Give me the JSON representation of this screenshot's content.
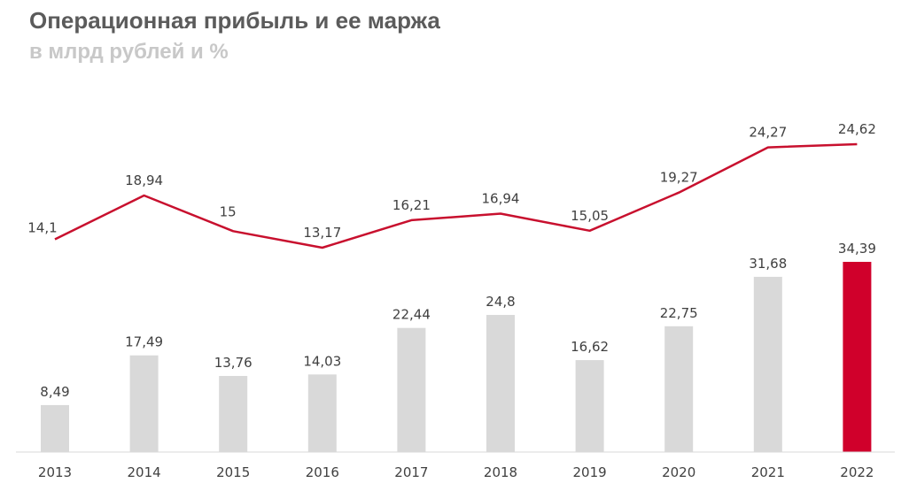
{
  "header": {
    "title": "Операционная прибыль и ее маржа",
    "subtitle": "в млрд рублей и %"
  },
  "colors": {
    "bar": "#d9d9d9",
    "bar_highlight": "#d0002b",
    "line": "#c8102e",
    "text": "#404040"
  },
  "chart_data": {
    "type": "bar",
    "title": "Операционная прибыль и ее маржа",
    "subtitle": "в млрд рублей и %",
    "categories": [
      "2013",
      "2014",
      "2015",
      "2016",
      "2017",
      "2018",
      "2019",
      "2020",
      "2021",
      "2022"
    ],
    "series": [
      {
        "name": "Операционная прибыль",
        "kind": "bar",
        "unit": "млрд рублей",
        "values": [
          8.49,
          17.49,
          13.76,
          14.03,
          22.44,
          24.8,
          16.62,
          22.75,
          31.68,
          34.39
        ],
        "labels": [
          "8,49",
          "17,49",
          "13,76",
          "14,03",
          "22,44",
          "24,8",
          "16,62",
          "22,75",
          "31,68",
          "34,39"
        ],
        "highlight_index": 9
      },
      {
        "name": "Маржа",
        "kind": "line",
        "unit": "%",
        "values": [
          14.1,
          18.94,
          15,
          13.17,
          16.21,
          16.94,
          15.05,
          19.27,
          24.27,
          24.62
        ],
        "labels": [
          "14,1",
          "18,94",
          "15",
          "13,17",
          "16,21",
          "16,94",
          "15,05",
          "19,27",
          "24,27",
          "24,62"
        ]
      }
    ],
    "xlabel": "",
    "ylabel": "",
    "grid": false,
    "legend": "none"
  }
}
